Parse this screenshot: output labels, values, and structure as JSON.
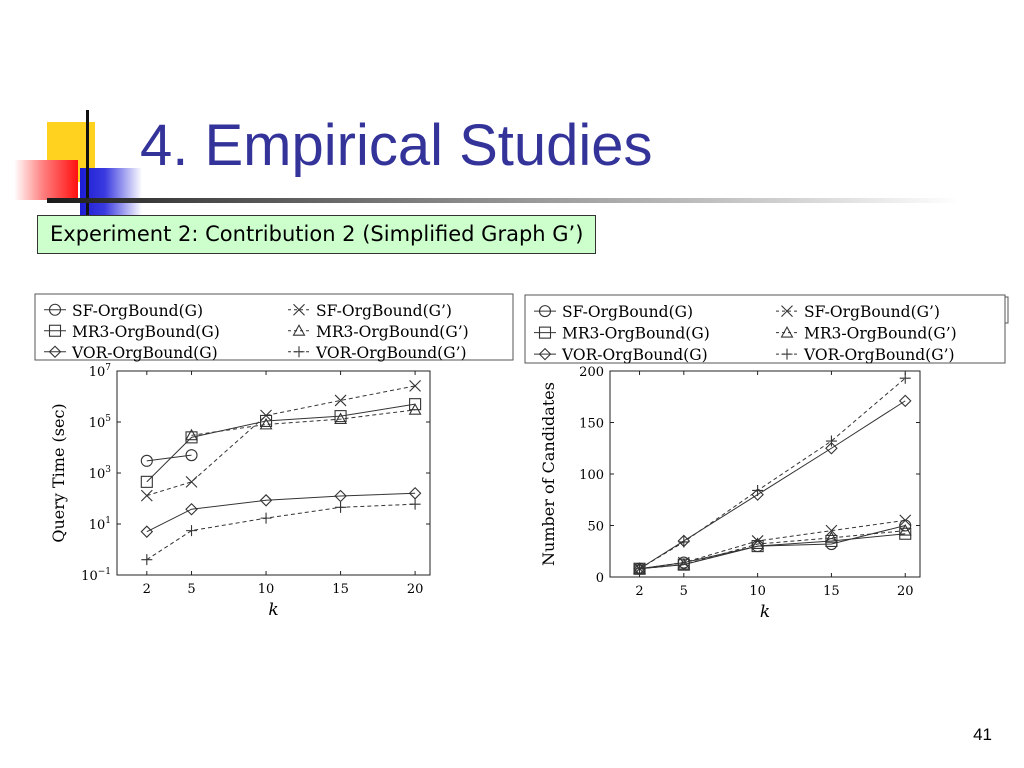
{
  "slide": {
    "title": "4. Empirical Studies",
    "caption": "Experiment 2: Contribution 2 (Simplified Graph G’)",
    "page_number": "41"
  },
  "legend_entries": [
    {
      "label": "SF-OrgBound(G)",
      "marker": "circle",
      "line": "solid"
    },
    {
      "label": "SF-OrgBound(G’)",
      "marker": "x",
      "line": "dashed"
    },
    {
      "label": "MR3-OrgBound(G)",
      "marker": "square",
      "line": "solid"
    },
    {
      "label": "MR3-OrgBound(G’)",
      "marker": "triangle",
      "line": "dashed"
    },
    {
      "label": "VOR-OrgBound(G)",
      "marker": "diamond",
      "line": "solid"
    },
    {
      "label": "VOR-OrgBound(G’)",
      "marker": "plus",
      "line": "dashed"
    }
  ],
  "chart_data": [
    {
      "type": "line",
      "title": "",
      "xlabel": "k",
      "ylabel": "Query Time (sec)",
      "x": [
        2,
        5,
        10,
        15,
        20
      ],
      "xlim": [
        0,
        21
      ],
      "x_ticks": [
        "2",
        "5",
        "10",
        "15",
        "20"
      ],
      "y_scale": "log",
      "ylim": [
        0.1,
        10000000
      ],
      "y_ticks": [
        {
          "value": 0.1,
          "base": "10",
          "exp": "−1"
        },
        {
          "value": 10,
          "base": "10",
          "exp": "1"
        },
        {
          "value": 1000,
          "base": "10",
          "exp": "3"
        },
        {
          "value": 100000,
          "base": "10",
          "exp": "5"
        },
        {
          "value": 10000000,
          "base": "10",
          "exp": "7"
        }
      ],
      "grid": false,
      "legend": "top",
      "series": [
        {
          "name": "SF-OrgBound(G)",
          "values": [
            3000,
            5000,
            null,
            null,
            null
          ]
        },
        {
          "name": "SF-OrgBound(G’)",
          "values": [
            130,
            450,
            180000,
            700000,
            2600000
          ]
        },
        {
          "name": "MR3-OrgBound(G)",
          "values": [
            450,
            25000,
            110000,
            170000,
            500000
          ]
        },
        {
          "name": "MR3-OrgBound(G’)",
          "values": [
            null,
            30000,
            80000,
            130000,
            300000
          ]
        },
        {
          "name": "VOR-OrgBound(G)",
          "values": [
            5,
            38,
            85,
            125,
            160
          ]
        },
        {
          "name": "VOR-OrgBound(G’)",
          "values": [
            0.4,
            5.5,
            17,
            45,
            60
          ]
        }
      ]
    },
    {
      "type": "line",
      "title": "",
      "xlabel": "k",
      "ylabel": "Number of Candidates",
      "x": [
        2,
        5,
        10,
        15,
        20
      ],
      "xlim": [
        0,
        21
      ],
      "x_ticks": [
        "2",
        "5",
        "10",
        "15",
        "20"
      ],
      "y_scale": "linear",
      "ylim": [
        0,
        200
      ],
      "y_ticks": [
        {
          "value": 0,
          "label": "0"
        },
        {
          "value": 50,
          "label": "50"
        },
        {
          "value": 100,
          "label": "100"
        },
        {
          "value": 150,
          "label": "150"
        },
        {
          "value": 200,
          "label": "200"
        }
      ],
      "grid": false,
      "legend": "top",
      "series": [
        {
          "name": "SF-OrgBound(G)",
          "values": [
            8,
            14,
            30,
            32,
            50
          ]
        },
        {
          "name": "SF-OrgBound(G’)",
          "values": [
            8,
            14,
            35,
            45,
            55
          ]
        },
        {
          "name": "MR3-OrgBound(G)",
          "values": [
            8,
            12,
            30,
            35,
            42
          ]
        },
        {
          "name": "MR3-OrgBound(G’)",
          "values": [
            8,
            12,
            32,
            38,
            45
          ]
        },
        {
          "name": "VOR-OrgBound(G)",
          "values": [
            8,
            35,
            80,
            125,
            171
          ]
        },
        {
          "name": "VOR-OrgBound(G’)",
          "values": [
            8,
            34,
            84,
            132,
            193
          ]
        }
      ]
    }
  ]
}
